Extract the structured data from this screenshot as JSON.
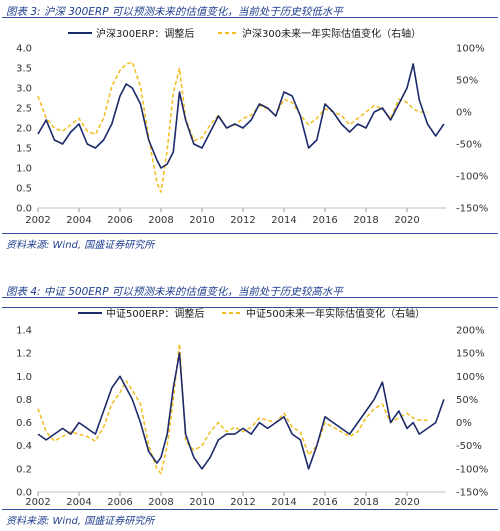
{
  "colors": {
    "navy": "#1c2a6b",
    "gold": "#f2bc1c",
    "accent": "#1f3f8f"
  },
  "chart_data": [
    {
      "type": "line",
      "title": "图表 3:  沪深 300ERP 可以预测未来的估值变化，当前处于历史较低水平",
      "source": "资料来源: Wind, 国盛证券研究所",
      "xlim": [
        2002,
        2021.9
      ],
      "x_ticks": [
        "2002",
        "2004",
        "2006",
        "2008",
        "2010",
        "2012",
        "2014",
        "2016",
        "2018",
        "2020"
      ],
      "y_left": {
        "lim": [
          0,
          4.0
        ],
        "ticks": [
          "0.0",
          "0.5",
          "1.0",
          "1.5",
          "2.0",
          "2.5",
          "3.0",
          "3.5",
          "4.0"
        ]
      },
      "y_right": {
        "lim": [
          -150,
          100
        ],
        "ticks": [
          "-150%",
          "-100%",
          "-50%",
          "0%",
          "50%",
          "100%"
        ]
      },
      "legend_position": "top",
      "series": [
        {
          "name": "沪深300ERP：调整后",
          "axis": "left",
          "color": "#1c2a6b",
          "style": "solid",
          "x": [
            2002,
            2002.4,
            2002.8,
            2003.2,
            2003.6,
            2004,
            2004.4,
            2004.8,
            2005.2,
            2005.6,
            2006,
            2006.3,
            2006.6,
            2007,
            2007.4,
            2007.8,
            2008,
            2008.3,
            2008.6,
            2008.9,
            2009.2,
            2009.6,
            2010,
            2010.4,
            2010.8,
            2011.2,
            2011.6,
            2012,
            2012.4,
            2012.8,
            2013.2,
            2013.6,
            2014,
            2014.4,
            2014.8,
            2015.2,
            2015.6,
            2016,
            2016.4,
            2016.8,
            2017.2,
            2017.6,
            2018,
            2018.4,
            2018.8,
            2019.2,
            2019.6,
            2020,
            2020.3,
            2020.6,
            2021,
            2021.4,
            2021.8
          ],
          "y": [
            1.85,
            2.2,
            1.7,
            1.6,
            1.9,
            2.1,
            1.6,
            1.5,
            1.7,
            2.1,
            2.8,
            3.1,
            3.0,
            2.6,
            1.7,
            1.2,
            1.0,
            1.1,
            1.4,
            2.9,
            2.2,
            1.6,
            1.5,
            1.9,
            2.3,
            2.0,
            2.1,
            2.0,
            2.2,
            2.6,
            2.5,
            2.3,
            2.9,
            2.8,
            2.3,
            1.5,
            1.7,
            2.6,
            2.4,
            2.1,
            1.9,
            2.1,
            2.0,
            2.4,
            2.5,
            2.2,
            2.6,
            3.0,
            3.6,
            2.7,
            2.1,
            1.8,
            2.1
          ]
        },
        {
          "name": "沪深300未来一年实际估值变化（右轴）",
          "axis": "right",
          "color": "#f2bc1c",
          "style": "dashed",
          "x": [
            2002,
            2002.4,
            2002.8,
            2003.2,
            2003.6,
            2004,
            2004.4,
            2004.8,
            2005.2,
            2005.6,
            2006,
            2006.3,
            2006.6,
            2007,
            2007.4,
            2007.8,
            2008,
            2008.3,
            2008.6,
            2008.9,
            2009.2,
            2009.6,
            2010,
            2010.4,
            2010.8,
            2011.2,
            2011.6,
            2012,
            2012.4,
            2012.8,
            2013.2,
            2013.6,
            2014,
            2014.4,
            2014.8,
            2015.2,
            2015.6,
            2016,
            2016.4,
            2016.8,
            2017.2,
            2017.6,
            2018,
            2018.4,
            2018.8,
            2019.2,
            2019.6,
            2020,
            2020.3,
            2020.6,
            2021
          ],
          "y": [
            25,
            -10,
            -25,
            -30,
            -20,
            -10,
            -30,
            -35,
            -10,
            40,
            65,
            75,
            78,
            40,
            -40,
            -110,
            -125,
            -60,
            30,
            68,
            -10,
            -45,
            -40,
            -20,
            -5,
            -25,
            -20,
            -10,
            -5,
            10,
            5,
            -5,
            20,
            15,
            -5,
            -20,
            -10,
            5,
            0,
            -5,
            -20,
            -10,
            0,
            10,
            5,
            -10,
            20,
            15,
            5,
            0,
            0
          ]
        }
      ]
    },
    {
      "type": "line",
      "title": "图表 4:  中证 500ERP 可以预测未来的估值变化，当前处于历史较高水平",
      "source": "资料来源: Wind, 国盛证券研究所",
      "xlim": [
        2002,
        2021.9
      ],
      "x_ticks": [
        "2002",
        "2004",
        "2006",
        "2008",
        "2010",
        "2012",
        "2014",
        "2016",
        "2018",
        "2020"
      ],
      "y_left": {
        "lim": [
          0,
          1.4
        ],
        "ticks": [
          "0.0",
          "0.2",
          "0.4",
          "0.6",
          "0.8",
          "1.0",
          "1.2",
          "1.4"
        ]
      },
      "y_right": {
        "lim": [
          -150,
          200
        ],
        "ticks": [
          "-150%",
          "-100%",
          "-50%",
          "0%",
          "50%",
          "100%",
          "150%",
          "200%"
        ]
      },
      "legend_position": "top",
      "series": [
        {
          "name": "中证500ERP：调整后",
          "axis": "left",
          "color": "#1c2a6b",
          "style": "solid",
          "x": [
            2002,
            2002.4,
            2002.8,
            2003.2,
            2003.6,
            2004,
            2004.4,
            2004.8,
            2005.2,
            2005.6,
            2006,
            2006.3,
            2006.6,
            2007,
            2007.4,
            2007.8,
            2008,
            2008.3,
            2008.6,
            2008.9,
            2009.2,
            2009.6,
            2010,
            2010.4,
            2010.8,
            2011.2,
            2011.6,
            2012,
            2012.4,
            2012.8,
            2013.2,
            2013.6,
            2014,
            2014.4,
            2014.8,
            2015.2,
            2015.6,
            2016,
            2016.4,
            2016.8,
            2017.2,
            2017.6,
            2018,
            2018.4,
            2018.8,
            2019.2,
            2019.6,
            2020,
            2020.3,
            2020.6,
            2021,
            2021.4,
            2021.8
          ],
          "y": [
            0.5,
            0.45,
            0.5,
            0.55,
            0.5,
            0.6,
            0.55,
            0.5,
            0.7,
            0.9,
            1.0,
            0.9,
            0.8,
            0.6,
            0.35,
            0.25,
            0.3,
            0.5,
            0.9,
            1.2,
            0.5,
            0.3,
            0.2,
            0.3,
            0.45,
            0.5,
            0.5,
            0.55,
            0.5,
            0.6,
            0.55,
            0.6,
            0.65,
            0.5,
            0.45,
            0.2,
            0.4,
            0.65,
            0.6,
            0.55,
            0.5,
            0.6,
            0.7,
            0.8,
            0.95,
            0.6,
            0.7,
            0.55,
            0.6,
            0.5,
            0.55,
            0.6,
            0.8
          ]
        },
        {
          "name": "中证500未来一年实际估值变化（右轴）",
          "axis": "right",
          "color": "#f2bc1c",
          "style": "dashed",
          "x": [
            2002,
            2002.4,
            2002.8,
            2003.2,
            2003.6,
            2004,
            2004.4,
            2004.8,
            2005.2,
            2005.6,
            2006,
            2006.3,
            2006.6,
            2007,
            2007.4,
            2007.8,
            2008,
            2008.3,
            2008.6,
            2008.9,
            2009.2,
            2009.6,
            2010,
            2010.4,
            2010.8,
            2011.2,
            2011.6,
            2012,
            2012.4,
            2012.8,
            2013.2,
            2013.6,
            2014,
            2014.4,
            2014.8,
            2015.2,
            2015.6,
            2016,
            2016.4,
            2016.8,
            2017.2,
            2017.6,
            2018,
            2018.4,
            2018.8,
            2019.2,
            2019.6,
            2020,
            2020.3,
            2020.6,
            2021
          ],
          "y": [
            30,
            -20,
            -40,
            -30,
            -20,
            -25,
            -30,
            -40,
            -10,
            40,
            65,
            90,
            70,
            40,
            -50,
            -100,
            -110,
            -50,
            50,
            170,
            -40,
            -60,
            -50,
            -20,
            0,
            -20,
            -10,
            -20,
            -10,
            10,
            5,
            0,
            20,
            -10,
            -20,
            -70,
            -50,
            0,
            -10,
            -20,
            -30,
            -20,
            10,
            30,
            40,
            0,
            10,
            20,
            10,
            5,
            5
          ]
        }
      ]
    }
  ]
}
